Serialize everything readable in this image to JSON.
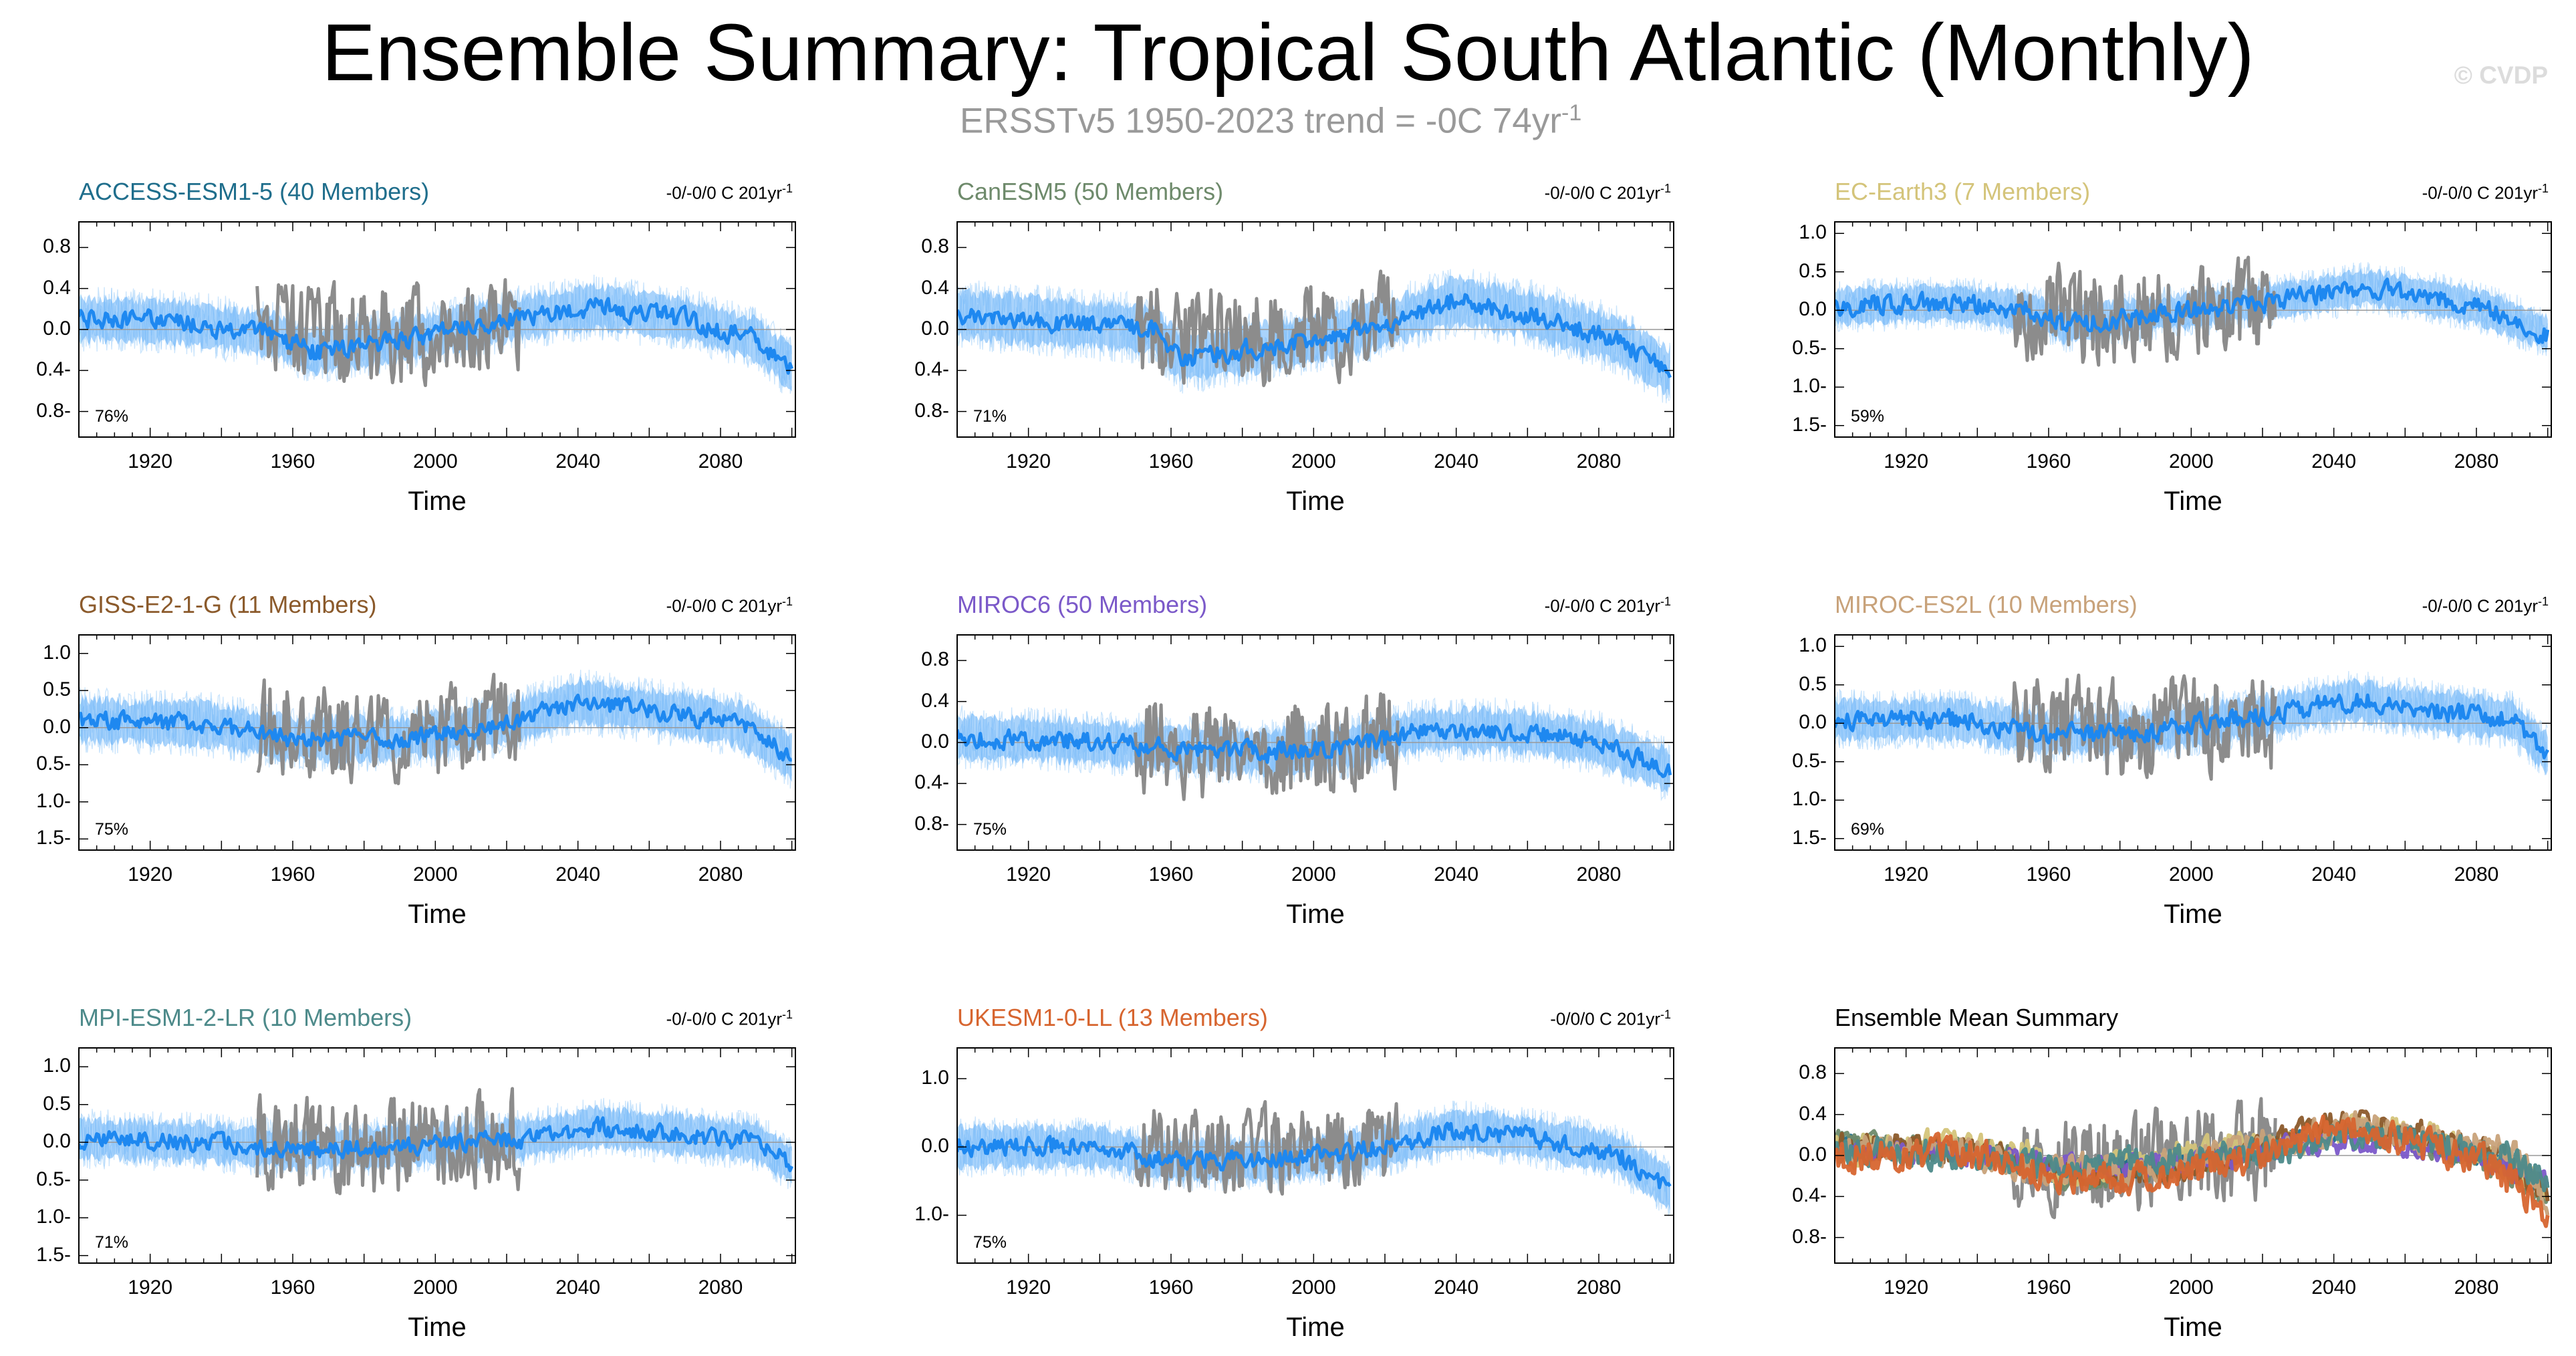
{
  "title": "Ensemble Summary: Tropical South Atlantic (Monthly)",
  "watermark": "© CVDP",
  "obs_overlay": {
    "text": "ERSSTv5 1950-2023 trend = -0C 74yr",
    "superscript": "-1"
  },
  "colors": {
    "ensemble_member": "#9dcdfa",
    "ensemble_spread": "#63aef7",
    "ensemble_mean": "#1e88f0",
    "observations": "#8c8c8c",
    "zero_line": "#999999"
  },
  "chart_data": [
    {
      "id": "access",
      "type": "line",
      "title": "ACCESS-ESM1-5 (40 Members)",
      "title_color": "#1f6e8c",
      "trend": "-0/-0/0 C 201yr",
      "trend_sup": "-1",
      "pct": "76%",
      "xlabel": "Time",
      "xticks": [
        1920,
        1960,
        2000,
        2040,
        2080
      ],
      "xlim": [
        1900,
        2101
      ],
      "yticks": [
        "0.8",
        "0.4",
        "0.0",
        "-0.4",
        "-0.8"
      ],
      "ylim": [
        -1.05,
        1.05
      ],
      "mean_profile": [
        [
          1900,
          0.1
        ],
        [
          1925,
          0.08
        ],
        [
          1955,
          -0.05
        ],
        [
          1965,
          -0.22
        ],
        [
          1990,
          -0.1
        ],
        [
          2025,
          0.12
        ],
        [
          2045,
          0.22
        ],
        [
          2070,
          0.1
        ],
        [
          2090,
          -0.1
        ],
        [
          2100,
          -0.38
        ]
      ],
      "noise": 0.1,
      "spread": 0.2,
      "obs_profile": [
        [
          1950,
          0.0
        ],
        [
          1975,
          -0.08
        ],
        [
          1995,
          -0.05
        ],
        [
          2023,
          0.05
        ]
      ],
      "obs_amp": 0.42,
      "seed": 11
    },
    {
      "id": "canesm5",
      "type": "line",
      "title": "CanESM5 (50 Members)",
      "title_color": "#6e8a6b",
      "trend": "-0/-0/0 C 201yr",
      "trend_sup": "-1",
      "pct": "71%",
      "xlabel": "Time",
      "xticks": [
        1920,
        1960,
        2000,
        2040,
        2080
      ],
      "xlim": [
        1900,
        2101
      ],
      "yticks": [
        "0.8",
        "0.4",
        "0.0",
        "-0.4",
        "-0.8"
      ],
      "ylim": [
        -1.05,
        1.05
      ],
      "mean_profile": [
        [
          1900,
          0.15
        ],
        [
          1925,
          0.08
        ],
        [
          1955,
          0.0
        ],
        [
          1963,
          -0.28
        ],
        [
          1990,
          -0.15
        ],
        [
          2020,
          0.05
        ],
        [
          2040,
          0.28
        ],
        [
          2060,
          0.15
        ],
        [
          2085,
          -0.1
        ],
        [
          2100,
          -0.42
        ]
      ],
      "noise": 0.1,
      "spread": 0.22,
      "obs_profile": [
        [
          1950,
          0.0
        ],
        [
          1975,
          -0.08
        ],
        [
          1995,
          -0.05
        ],
        [
          2023,
          0.05
        ]
      ],
      "obs_amp": 0.42,
      "seed": 23
    },
    {
      "id": "ecearth3",
      "type": "line",
      "title": "EC-Earth3 (7 Members)",
      "title_color": "#d4c47a",
      "trend": "-0/-0/0 C 201yr",
      "trend_sup": "-1",
      "pct": "59%",
      "xlabel": "Time",
      "xticks": [
        1920,
        1960,
        2000,
        2040,
        2080
      ],
      "xlim": [
        1900,
        2101
      ],
      "yticks": [
        "1.0",
        "0.5",
        "0.0",
        "-0.5",
        "-1.0",
        "-1.5"
      ],
      "ylim": [
        -1.65,
        1.15
      ],
      "mean_profile": [
        [
          1900,
          0.05
        ],
        [
          1930,
          0.1
        ],
        [
          1955,
          0.0
        ],
        [
          1965,
          -0.2
        ],
        [
          1990,
          -0.05
        ],
        [
          2020,
          0.1
        ],
        [
          2050,
          0.3
        ],
        [
          2080,
          0.05
        ],
        [
          2100,
          -0.3
        ]
      ],
      "noise": 0.14,
      "spread": 0.22,
      "obs_profile": [
        [
          1950,
          0.0
        ],
        [
          1975,
          -0.1
        ],
        [
          1995,
          -0.05
        ],
        [
          2023,
          0.05
        ]
      ],
      "obs_amp": 0.55,
      "seed": 37
    },
    {
      "id": "giss",
      "type": "line",
      "title": "GISS-E2-1-G (11 Members)",
      "title_color": "#8b5a2b",
      "trend": "-0/-0/0 C 201yr",
      "trend_sup": "-1",
      "pct": "75%",
      "xlabel": "Time",
      "xticks": [
        1920,
        1960,
        2000,
        2040,
        2080
      ],
      "xlim": [
        1900,
        2101
      ],
      "yticks": [
        "1.0",
        "0.5",
        "0.0",
        "-0.5",
        "-1.0",
        "-1.5"
      ],
      "ylim": [
        -1.65,
        1.25
      ],
      "mean_profile": [
        [
          1900,
          0.1
        ],
        [
          1935,
          0.05
        ],
        [
          1960,
          -0.15
        ],
        [
          1990,
          -0.15
        ],
        [
          2020,
          0.05
        ],
        [
          2040,
          0.35
        ],
        [
          2065,
          0.2
        ],
        [
          2085,
          0.05
        ],
        [
          2100,
          -0.4
        ]
      ],
      "noise": 0.13,
      "spread": 0.28,
      "obs_profile": [
        [
          1950,
          0.0
        ],
        [
          1975,
          -0.1
        ],
        [
          1995,
          -0.05
        ],
        [
          2023,
          0.05
        ]
      ],
      "obs_amp": 0.55,
      "seed": 41
    },
    {
      "id": "miroc6",
      "type": "line",
      "title": "MIROC6 (50 Members)",
      "title_color": "#7b59c9",
      "trend": "-0/-0/0 C 201yr",
      "trend_sup": "-1",
      "pct": "75%",
      "xlabel": "Time",
      "xticks": [
        1920,
        1960,
        2000,
        2040,
        2080
      ],
      "xlim": [
        1900,
        2101
      ],
      "yticks": [
        "0.8",
        "0.4",
        "0.0",
        "-0.4",
        "-0.8"
      ],
      "ylim": [
        -1.05,
        1.05
      ],
      "mean_profile": [
        [
          1900,
          0.05
        ],
        [
          1930,
          0.02
        ],
        [
          1960,
          -0.05
        ],
        [
          1985,
          -0.1
        ],
        [
          2010,
          -0.05
        ],
        [
          2030,
          0.12
        ],
        [
          2055,
          0.12
        ],
        [
          2080,
          0.0
        ],
        [
          2100,
          -0.28
        ]
      ],
      "noise": 0.1,
      "spread": 0.2,
      "obs_profile": [
        [
          1950,
          0.0
        ],
        [
          1975,
          -0.08
        ],
        [
          1995,
          -0.05
        ],
        [
          2023,
          0.05
        ]
      ],
      "obs_amp": 0.42,
      "seed": 53
    },
    {
      "id": "miroces2l",
      "type": "line",
      "title": "MIROC-ES2L (10 Members)",
      "title_color": "#c8a27a",
      "trend": "-0/-0/0 C 201yr",
      "trend_sup": "-1",
      "pct": "69%",
      "xlabel": "Time",
      "xticks": [
        1920,
        1960,
        2000,
        2040,
        2080
      ],
      "xlim": [
        1900,
        2101
      ],
      "yticks": [
        "1.0",
        "0.5",
        "0.0",
        "-0.5",
        "-1.0",
        "-1.5"
      ],
      "ylim": [
        -1.65,
        1.15
      ],
      "mean_profile": [
        [
          1900,
          0.05
        ],
        [
          1935,
          0.05
        ],
        [
          1960,
          -0.15
        ],
        [
          1990,
          -0.1
        ],
        [
          2020,
          0.1
        ],
        [
          2045,
          0.3
        ],
        [
          2070,
          0.15
        ],
        [
          2090,
          0.05
        ],
        [
          2100,
          -0.4
        ]
      ],
      "noise": 0.14,
      "spread": 0.25,
      "obs_profile": [
        [
          1950,
          0.0
        ],
        [
          1975,
          -0.1
        ],
        [
          1995,
          -0.05
        ],
        [
          2023,
          0.05
        ]
      ],
      "obs_amp": 0.55,
      "seed": 67
    },
    {
      "id": "mpi",
      "type": "line",
      "title": "MPI-ESM1-2-LR (10 Members)",
      "title_color": "#4d8a8a",
      "trend": "-0/-0/0 C 201yr",
      "trend_sup": "-1",
      "pct": "71%",
      "xlabel": "Time",
      "xticks": [
        1920,
        1960,
        2000,
        2040,
        2080
      ],
      "xlim": [
        1900,
        2101
      ],
      "yticks": [
        "1.0",
        "0.5",
        "0.0",
        "-0.5",
        "-1.0",
        "-1.5"
      ],
      "ylim": [
        -1.6,
        1.25
      ],
      "mean_profile": [
        [
          1900,
          0.05
        ],
        [
          1935,
          0.0
        ],
        [
          1960,
          -0.1
        ],
        [
          1990,
          -0.05
        ],
        [
          2025,
          0.05
        ],
        [
          2045,
          0.2
        ],
        [
          2070,
          0.1
        ],
        [
          2090,
          0.0
        ],
        [
          2100,
          -0.3
        ]
      ],
      "noise": 0.13,
      "spread": 0.25,
      "obs_profile": [
        [
          1950,
          0.0
        ],
        [
          1975,
          -0.1
        ],
        [
          1995,
          -0.05
        ],
        [
          2023,
          0.05
        ]
      ],
      "obs_amp": 0.55,
      "seed": 79
    },
    {
      "id": "ukesm",
      "type": "line",
      "title": "UKESM1-0-LL (13 Members)",
      "title_color": "#d7652f",
      "trend": "-0/0/0 C 201yr",
      "trend_sup": "-1",
      "pct": "75%",
      "xlabel": "Time",
      "xticks": [
        1920,
        1960,
        2000,
        2040,
        2080
      ],
      "xlim": [
        1900,
        2101
      ],
      "yticks": [
        "1.0",
        "0.0",
        "-1.0"
      ],
      "ylim": [
        -1.7,
        1.45
      ],
      "mean_profile": [
        [
          1900,
          0.0
        ],
        [
          1940,
          0.0
        ],
        [
          1960,
          -0.2
        ],
        [
          1990,
          -0.2
        ],
        [
          2020,
          0.0
        ],
        [
          2040,
          0.25
        ],
        [
          2060,
          0.15
        ],
        [
          2085,
          -0.1
        ],
        [
          2100,
          -0.6
        ]
      ],
      "noise": 0.15,
      "spread": 0.28,
      "obs_profile": [
        [
          1950,
          0.0
        ],
        [
          1975,
          -0.1
        ],
        [
          1995,
          -0.05
        ],
        [
          2023,
          0.05
        ]
      ],
      "obs_amp": 0.55,
      "seed": 89
    },
    {
      "id": "mean_summary",
      "type": "line",
      "title": "Ensemble Mean Summary",
      "title_color": "#000000",
      "xlabel": "Time",
      "xticks": [
        1920,
        1960,
        2000,
        2040,
        2080
      ],
      "xlim": [
        1900,
        2101
      ],
      "yticks": [
        "0.8",
        "0.4",
        "0.0",
        "-0.4",
        "-0.8"
      ],
      "ylim": [
        -1.05,
        1.05
      ],
      "summary_colors": [
        "#1f6e8c",
        "#6e8a6b",
        "#d4c47a",
        "#8b5a2b",
        "#7b59c9",
        "#c8a27a",
        "#4d8a8a",
        "#d7652f"
      ],
      "obs_profile": [
        [
          1950,
          0.0
        ],
        [
          1975,
          -0.08
        ],
        [
          1995,
          -0.05
        ],
        [
          2023,
          0.05
        ]
      ],
      "obs_amp": 0.42,
      "seed": 97
    }
  ]
}
